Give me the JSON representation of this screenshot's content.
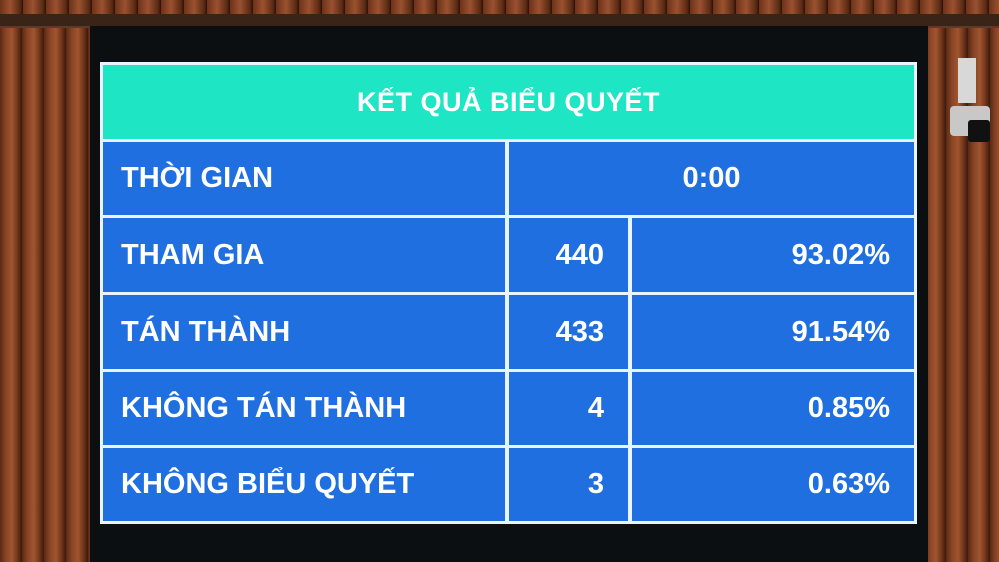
{
  "board": {
    "title": "KẾT QUẢ BIỂU QUYẾT",
    "time": {
      "label": "THỜI GIAN",
      "value": "0:00"
    },
    "rows": [
      {
        "label": "THAM GIA",
        "count": "440",
        "percent": "93.02%"
      },
      {
        "label": "TÁN THÀNH",
        "count": "433",
        "percent": "91.54%"
      },
      {
        "label": "KHÔNG TÁN THÀNH",
        "count": "4",
        "percent": "0.85%"
      },
      {
        "label": "KHÔNG BIỂU QUYẾT",
        "count": "3",
        "percent": "0.63%"
      }
    ]
  },
  "colors": {
    "header": "#1ee6c4",
    "cell": "#1f6fe0",
    "grid": "#eaf4ff"
  }
}
